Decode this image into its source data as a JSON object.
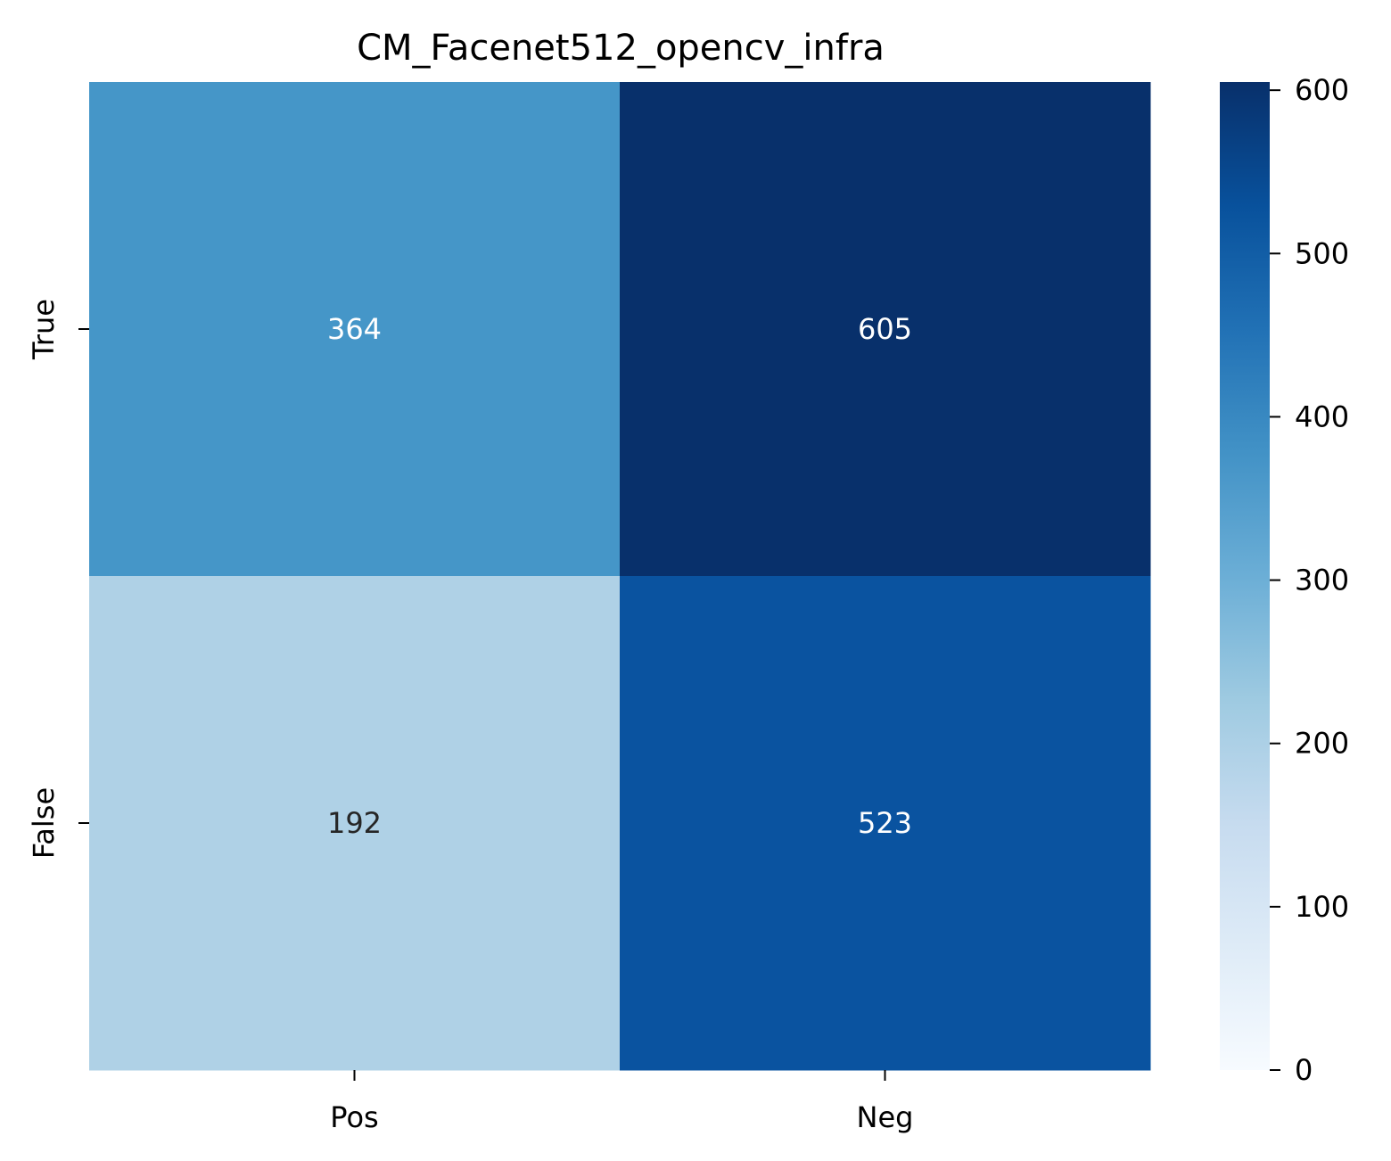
{
  "chart_data": {
    "type": "heatmap",
    "title": "CM_Facenet512_opencv_infra",
    "xlabel": "",
    "ylabel": "",
    "x_categories": [
      "Pos",
      "Neg"
    ],
    "y_categories": [
      "True",
      "False"
    ],
    "values": [
      [
        364,
        605
      ],
      [
        192,
        523
      ]
    ],
    "colormap": "Blues",
    "colorbar": {
      "min": 0,
      "max": 605,
      "ticks": [
        0,
        100,
        200,
        300,
        400,
        500,
        600
      ],
      "tick_labels": [
        "0",
        "100",
        "200",
        "300",
        "400",
        "500",
        "600"
      ]
    },
    "cell_colors": [
      [
        "#4596c8",
        "#08306b"
      ],
      [
        "#afd1e6",
        "#0a53a0"
      ]
    ],
    "annotation_colors": [
      [
        "#ffffff",
        "#ffffff"
      ],
      [
        "#262626",
        "#ffffff"
      ]
    ]
  }
}
